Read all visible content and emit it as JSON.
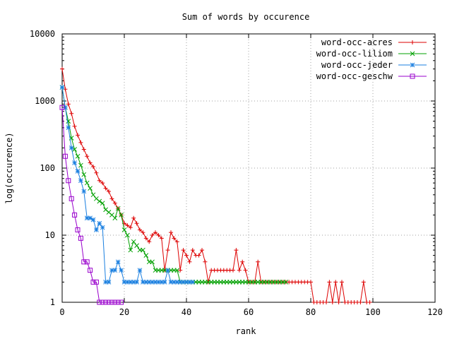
{
  "chart_data": {
    "type": "line",
    "title": "Sum of words by occurence",
    "xlabel": "rank",
    "ylabel": "log(occurence)",
    "xlim": [
      0,
      120
    ],
    "ylim": [
      1,
      10000
    ],
    "yscale": "log",
    "grid": true,
    "legend_position": "top-right",
    "x_ticks": [
      "0",
      "20",
      "40",
      "60",
      "80",
      "100",
      "120"
    ],
    "y_ticks": [
      "1",
      "10",
      "100",
      "1000",
      "10000"
    ],
    "series": [
      {
        "name": "word-occ-acres",
        "color": "#dd0000",
        "marker": "plus",
        "values": [
          3000,
          1500,
          900,
          650,
          420,
          310,
          240,
          190,
          150,
          120,
          105,
          85,
          65,
          60,
          50,
          45,
          35,
          30,
          25,
          20,
          15,
          14,
          13,
          18,
          15,
          12,
          11,
          9,
          8,
          10,
          11,
          10,
          9,
          7,
          6,
          11,
          9,
          8,
          7,
          6,
          5,
          4,
          6,
          5,
          5,
          4,
          4,
          3,
          3,
          3,
          4,
          3,
          3,
          3,
          3,
          3,
          3,
          3,
          3,
          3,
          2,
          2,
          2,
          2,
          2,
          2,
          2,
          2,
          2,
          2,
          2,
          2,
          2,
          2,
          2,
          2,
          2,
          2,
          2,
          2,
          2,
          1,
          1,
          1,
          1,
          1,
          1,
          1,
          1,
          1,
          1,
          1,
          1,
          1,
          1,
          1,
          1,
          1,
          1,
          1
        ],
        "spikes": [
          [
            33,
            3
          ],
          [
            38,
            3
          ],
          [
            45,
            6
          ],
          [
            47,
            2
          ],
          [
            50,
            3
          ],
          [
            51,
            3
          ],
          [
            56,
            6
          ],
          [
            58,
            4
          ],
          [
            63,
            4
          ],
          [
            68,
            2
          ],
          [
            72,
            2
          ],
          [
            75,
            2
          ],
          [
            78,
            2
          ],
          [
            80,
            2
          ],
          [
            86,
            2
          ],
          [
            88,
            2
          ],
          [
            90,
            2
          ],
          [
            97,
            2
          ]
        ]
      },
      {
        "name": "word-occ-liliom",
        "color": "#00a000",
        "marker": "x",
        "values": [
          1600,
          800,
          500,
          280,
          190,
          150,
          110,
          80,
          60,
          50,
          40,
          35,
          32,
          30,
          24,
          22,
          20,
          18,
          17,
          15,
          12,
          10,
          9,
          8,
          7,
          6,
          6,
          5,
          4,
          4,
          3,
          3,
          3,
          3,
          3,
          3,
          3,
          3,
          2,
          2,
          2,
          2,
          2,
          2,
          2,
          2,
          2,
          2,
          2,
          2,
          2,
          2,
          2,
          2,
          2,
          2,
          2,
          2,
          2,
          2,
          2,
          2,
          2,
          2,
          2,
          2,
          2,
          2,
          2,
          2,
          2,
          2,
          2
        ],
        "spikes": [
          [
            18,
            25
          ],
          [
            19,
            20
          ],
          [
            20,
            12
          ],
          [
            22,
            6
          ],
          [
            30,
            3
          ],
          [
            33,
            3
          ],
          [
            38,
            2
          ],
          [
            40,
            2
          ],
          [
            45,
            2
          ]
        ]
      },
      {
        "name": "word-occ-jeder",
        "color": "#1a7fe0",
        "marker": "star",
        "values": [
          1600,
          800,
          400,
          200,
          120,
          90,
          65,
          45,
          30,
          18,
          17,
          12,
          15,
          13,
          9,
          4,
          3,
          3,
          4,
          3,
          2,
          2,
          2,
          2,
          2,
          2,
          2,
          2,
          2,
          2,
          2,
          2,
          2,
          2,
          2,
          2,
          2,
          2,
          2,
          2,
          2,
          2,
          2
        ],
        "spikes": [
          [
            8,
            18
          ],
          [
            9,
            18
          ],
          [
            14,
            2
          ],
          [
            15,
            2
          ],
          [
            17,
            3
          ],
          [
            25,
            3
          ],
          [
            28,
            2
          ],
          [
            30,
            2
          ],
          [
            34,
            3
          ],
          [
            37,
            2
          ],
          [
            40,
            2
          ]
        ]
      },
      {
        "name": "word-occ-geschw",
        "color": "#9900cc",
        "marker": "square",
        "values": [
          800,
          150,
          65,
          35,
          20,
          12,
          9,
          4,
          4,
          3,
          2,
          2,
          1,
          1,
          1,
          1,
          1,
          1,
          1,
          1
        ],
        "spikes": []
      }
    ]
  }
}
